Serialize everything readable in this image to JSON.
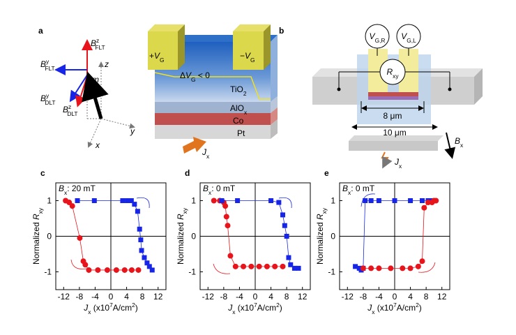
{
  "figure_a": {
    "panel": "a",
    "vectors": {
      "bz_flt": {
        "symbol": "B",
        "sup": "z",
        "sub": "FLT"
      },
      "by_flt": {
        "symbol": "B",
        "sup": "y",
        "sub": "FLT"
      },
      "by_dlt": {
        "symbol": "B",
        "sup": "y",
        "sub": "DLT"
      },
      "bz_dlt": {
        "symbol": "B",
        "sup": "z",
        "sub": "DLT"
      },
      "m": "m",
      "z": "z",
      "y": "y",
      "x": "x"
    },
    "device": {
      "plus_vg": {
        "text": "+",
        "symbol": "V",
        "sub": "G"
      },
      "minus_vg": {
        "text": "−",
        "symbol": "V",
        "sub": "G"
      },
      "delta_vg": {
        "text": "Δ",
        "symbol": "V",
        "sub": "G",
        "tail": " < 0"
      },
      "tio2": {
        "text": "TiO",
        "sub": "2"
      },
      "alox": {
        "text": "AlO",
        "sub": "x"
      },
      "co": "Co",
      "pt": "Pt",
      "jx": {
        "symbol": "J",
        "sub": "x"
      }
    }
  },
  "figure_b": {
    "panel": "b",
    "vgr": {
      "symbol": "V",
      "sub": "G,R"
    },
    "vgl": {
      "symbol": "V",
      "sub": "G,L"
    },
    "rxy": {
      "symbol": "R",
      "sub": "xy"
    },
    "inner_width": "8 μm",
    "outer_width": "10 μm",
    "bx": {
      "symbol": "B",
      "sub": "x"
    },
    "jx": {
      "symbol": "J",
      "sub": "x"
    }
  },
  "chart_data": [
    {
      "type": "line",
      "panel": "c",
      "annotation": {
        "symbol": "B",
        "sub": "x",
        "text": ": 20 mT"
      },
      "xlabel": {
        "symbol": "J",
        "sub": "x",
        "text": " (x10",
        "sup": "7",
        "tail": "A/cm",
        "sup2": "2",
        "tail2": ")"
      },
      "ylabel": {
        "text": "Normalized ",
        "symbol": "R",
        "sub": "xy"
      },
      "xlim": [
        -14,
        14
      ],
      "ylim": [
        -1.5,
        1.5
      ],
      "xticks": [
        -12,
        -8,
        -4,
        0,
        4,
        8,
        12
      ],
      "yticks": [
        -1,
        0,
        1
      ],
      "series": [
        {
          "color": "#e8141b",
          "marker": "circle",
          "x": [
            -11.5,
            -10.6,
            -9.8,
            -7.9,
            -7.0,
            -6.5,
            -5.6,
            -3.3,
            -0.9,
            1.4,
            3.5,
            5.3,
            7.0
          ],
          "values": [
            1.0,
            0.95,
            0.85,
            -0.05,
            -0.7,
            -0.8,
            -0.95,
            -0.95,
            -0.95,
            -0.95,
            -0.95,
            -0.95,
            -0.95
          ]
        },
        {
          "color": "#1726e6",
          "marker": "square",
          "x": [
            -8.5,
            -4.2,
            3.0,
            4.2,
            5.2,
            6.0,
            6.8,
            7.3,
            7.6,
            7.8,
            8.5,
            9.2,
            9.8,
            10.5
          ],
          "values": [
            1.0,
            1.0,
            1.0,
            1.0,
            1.0,
            0.9,
            0.7,
            0.2,
            -0.1,
            -0.4,
            -0.6,
            -0.75,
            -0.85,
            -0.95
          ]
        }
      ]
    },
    {
      "type": "line",
      "panel": "d",
      "annotation": {
        "symbol": "B",
        "sub": "x",
        "text": ": 0 mT"
      },
      "xlabel": {
        "symbol": "J",
        "sub": "x",
        "text": " (x10",
        "sup": "7",
        "tail": "A/cm",
        "sup2": "2",
        "tail2": ")"
      },
      "ylabel": {
        "text": "Normalized ",
        "symbol": "R",
        "sub": "xy"
      },
      "xlim": [
        -14,
        14
      ],
      "ylim": [
        -1.5,
        1.5
      ],
      "xticks": [
        -12,
        -8,
        -4,
        0,
        4,
        8,
        12
      ],
      "yticks": [
        -1,
        0,
        1
      ],
      "series": [
        {
          "color": "#e8141b",
          "marker": "circle",
          "x": [
            -10.5,
            -9.0,
            -8.0,
            -7.6,
            -7.3,
            -7.0,
            -6.3,
            -5.0,
            -3.0,
            -1.0,
            1.0,
            3.0,
            5.0,
            7.0
          ],
          "values": [
            1.0,
            1.0,
            0.95,
            0.85,
            0.55,
            0.3,
            -0.55,
            -0.85,
            -0.85,
            -0.85,
            -0.85,
            -0.85,
            -0.85,
            -0.85
          ]
        },
        {
          "color": "#1726e6",
          "marker": "square",
          "x": [
            -8.5,
            -4.5,
            4.0,
            6.0,
            7.0,
            7.5,
            8.0,
            8.5,
            9.0,
            10.0,
            11.0
          ],
          "values": [
            1.0,
            1.0,
            1.0,
            0.95,
            0.6,
            0.3,
            0.0,
            -0.6,
            -0.8,
            -0.9,
            -0.9
          ]
        }
      ]
    },
    {
      "type": "line",
      "panel": "e",
      "annotation": {
        "symbol": "B",
        "sub": "x",
        "text": ": 0 mT"
      },
      "xlabel": {
        "symbol": "J",
        "sub": "x",
        "text": " (x10",
        "sup": "7",
        "tail": "A/cm",
        "sup2": "2",
        "tail2": ")"
      },
      "ylabel": {
        "text": "Normalized ",
        "symbol": "R",
        "sub": "xy"
      },
      "xlim": [
        -14,
        14
      ],
      "ylim": [
        -1.5,
        1.5
      ],
      "xticks": [
        -12,
        -8,
        -4,
        0,
        4,
        8,
        12
      ],
      "yticks": [
        -1,
        0,
        1
      ],
      "series": [
        {
          "color": "#1726e6",
          "marker": "square",
          "x": [
            10.0,
            9.5,
            8.5,
            7.0,
            4.0,
            0.0,
            -4.0,
            -6.0,
            -7.5,
            -8.0,
            -8.5,
            -9.0,
            -10.0
          ],
          "values": [
            1.0,
            1.0,
            1.0,
            1.0,
            1.0,
            1.0,
            1.0,
            1.0,
            1.0,
            -0.9,
            -0.95,
            -0.9,
            -0.85
          ]
        },
        {
          "color": "#e8141b",
          "marker": "circle",
          "x": [
            -8.0,
            -6.0,
            -4.0,
            -1.0,
            2.0,
            4.0,
            6.0,
            7.0,
            7.5,
            8.5,
            9.5,
            10.0,
            10.5
          ],
          "values": [
            -0.9,
            -0.9,
            -0.9,
            -0.9,
            -0.9,
            -0.9,
            -0.85,
            -0.7,
            0.8,
            0.95,
            0.95,
            1.0,
            1.0
          ]
        }
      ]
    }
  ]
}
